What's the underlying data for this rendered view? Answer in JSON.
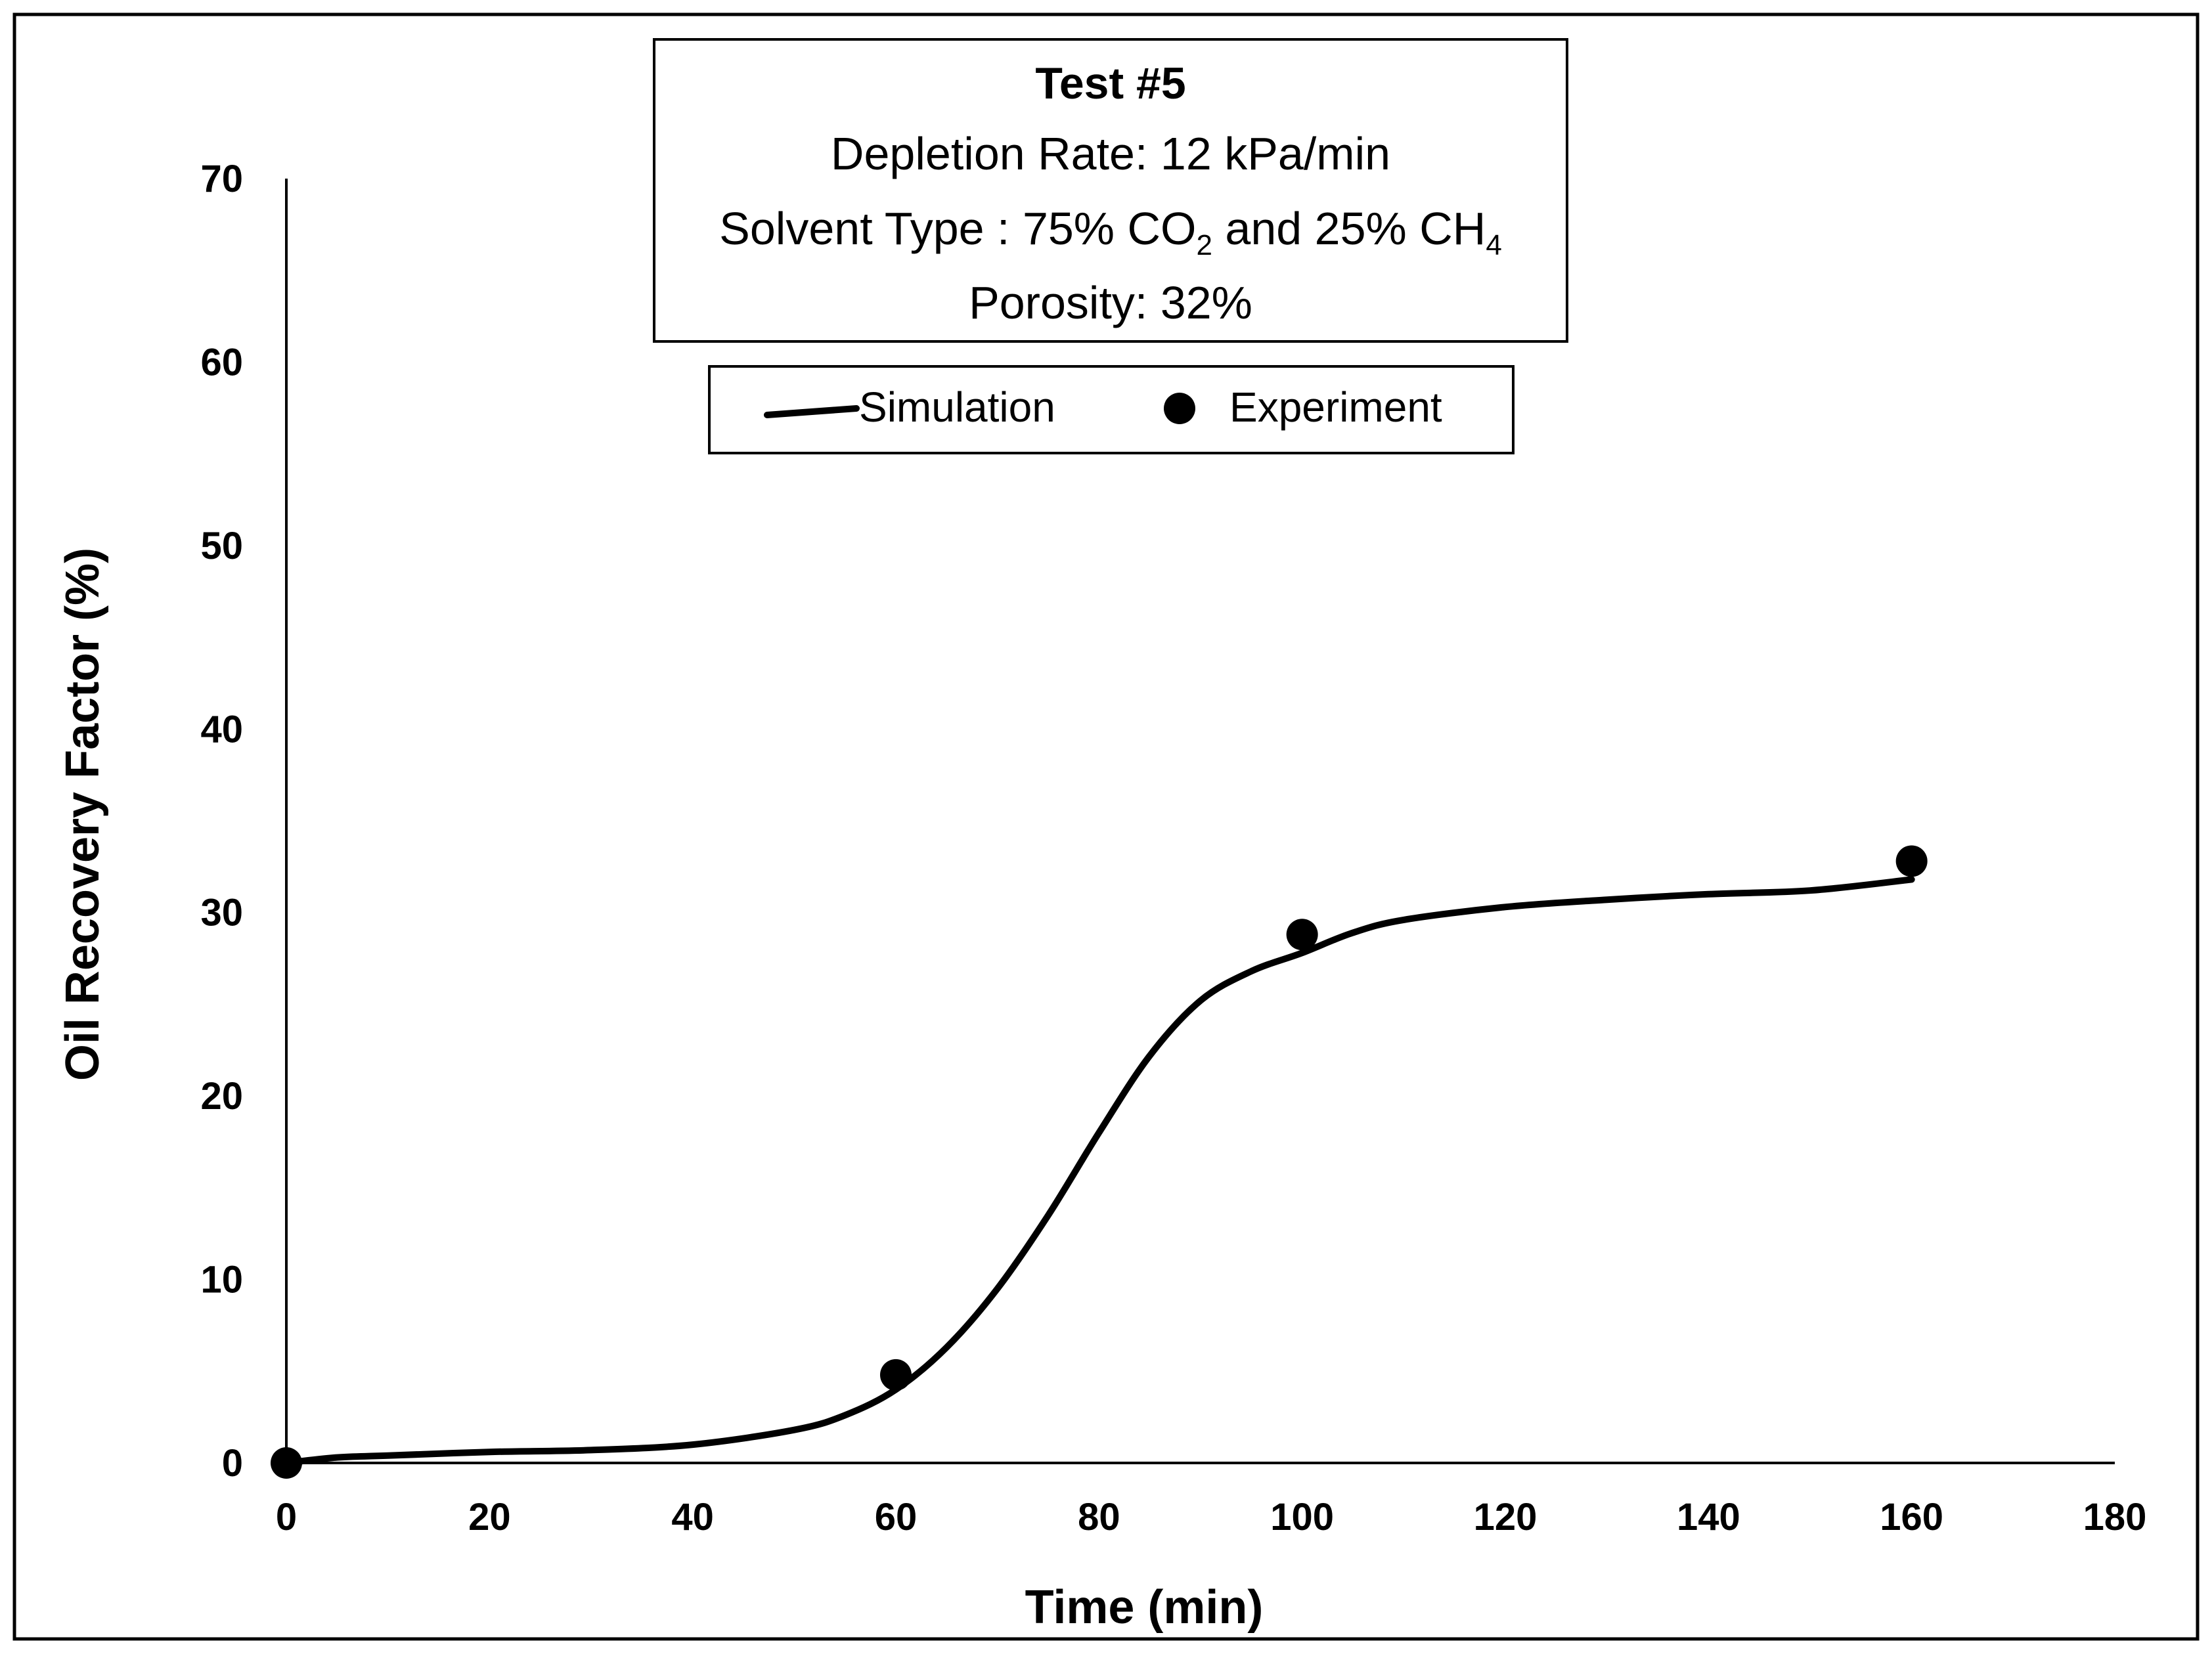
{
  "chart_data": {
    "type": "line",
    "info_box": {
      "title": "Test #5",
      "line1": "Depletion Rate: 12 kPa/min",
      "line2_prefix": "Solvent Type : 75% CO",
      "line2_sub1": "2",
      "line2_mid": " and 25% CH",
      "line2_sub2": "4",
      "line3": "Porosity: 32%"
    },
    "legend": {
      "placement": "top-center",
      "simulation_label": "Simulation",
      "experiment_label": "Experiment"
    },
    "xlabel": "Time (min)",
    "ylabel": "Oil Recovery Factor (%)",
    "xlim": [
      0,
      180
    ],
    "ylim": [
      0,
      70
    ],
    "xticks": [
      0,
      20,
      40,
      60,
      80,
      100,
      120,
      140,
      160,
      180
    ],
    "yticks": [
      0,
      10,
      20,
      30,
      40,
      50,
      60,
      70
    ],
    "grid": false,
    "series": [
      {
        "name": "Simulation",
        "style": "line",
        "color": "#000000",
        "x": [
          0,
          5,
          10,
          20,
          30,
          40,
          50,
          55,
          60,
          65,
          70,
          75,
          80,
          85,
          90,
          95,
          100,
          105,
          110,
          120,
          130,
          140,
          150,
          160
        ],
        "y": [
          0,
          0.3,
          0.4,
          0.6,
          0.7,
          1.0,
          1.8,
          2.6,
          4.0,
          6.3,
          9.5,
          13.5,
          18.0,
          22.2,
          25.2,
          26.8,
          27.8,
          28.9,
          29.6,
          30.3,
          30.7,
          31.0,
          31.2,
          31.8
        ]
      },
      {
        "name": "Experiment",
        "style": "markers",
        "color": "#000000",
        "x": [
          0,
          60,
          100,
          160
        ],
        "y": [
          0,
          4.8,
          28.8,
          32.8
        ]
      }
    ]
  }
}
